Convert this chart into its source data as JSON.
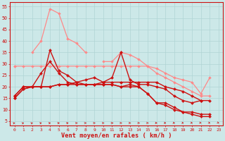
{
  "xlabel": "Vent moyen/en rafales ( km/h )",
  "background_color": "#cce8e8",
  "grid_color": "#b0d4d4",
  "x": [
    0,
    1,
    2,
    3,
    4,
    5,
    6,
    7,
    8,
    9,
    10,
    11,
    12,
    13,
    14,
    15,
    16,
    17,
    18,
    19,
    20,
    21,
    22,
    23
  ],
  "ylim": [
    3,
    57
  ],
  "yticks": [
    5,
    10,
    15,
    20,
    25,
    30,
    35,
    40,
    45,
    50,
    55
  ],
  "series": [
    {
      "color": "#ff8888",
      "lw": 0.9,
      "ms": 2.0,
      "y": [
        29,
        null,
        35,
        40,
        54,
        52,
        41,
        39,
        35,
        null,
        31,
        31,
        35,
        34,
        32,
        29,
        28,
        26,
        24,
        23,
        22,
        17,
        24,
        null
      ]
    },
    {
      "color": "#ff8888",
      "lw": 0.9,
      "ms": 2.0,
      "y": [
        29,
        29,
        29,
        29,
        29,
        29,
        29,
        29,
        29,
        29,
        29,
        29,
        29,
        29,
        29,
        29,
        26,
        24,
        22,
        20,
        18,
        16,
        16,
        null
      ]
    },
    {
      "color": "#cc1111",
      "lw": 1.0,
      "ms": 2.2,
      "y": [
        15,
        19,
        20,
        20,
        36,
        27,
        25,
        22,
        21,
        21,
        21,
        21,
        20,
        20,
        20,
        17,
        13,
        13,
        11,
        9,
        9,
        8,
        8,
        null
      ]
    },
    {
      "color": "#cc1111",
      "lw": 1.0,
      "ms": 2.2,
      "y": [
        15,
        19,
        20,
        26,
        31,
        26,
        22,
        21,
        21,
        21,
        21,
        21,
        20,
        21,
        20,
        17,
        13,
        12,
        10,
        9,
        8,
        7,
        7,
        null
      ]
    },
    {
      "color": "#cc1111",
      "lw": 1.0,
      "ms": 2.2,
      "y": [
        16,
        20,
        20,
        20,
        20,
        21,
        21,
        21,
        21,
        21,
        22,
        22,
        22,
        22,
        22,
        22,
        22,
        20,
        19,
        18,
        16,
        14,
        14,
        null
      ]
    },
    {
      "color": "#cc1111",
      "lw": 1.0,
      "ms": 2.2,
      "y": [
        16,
        20,
        20,
        20,
        20,
        21,
        21,
        22,
        23,
        24,
        22,
        24,
        35,
        23,
        21,
        21,
        20,
        19,
        16,
        14,
        13,
        14,
        null,
        null
      ]
    }
  ],
  "arrow_angles": [
    45,
    45,
    45,
    40,
    35,
    30,
    25,
    20,
    15,
    10,
    5,
    0,
    -5,
    -10,
    -15,
    -20,
    -25,
    -30,
    -35,
    -40,
    -45,
    -50,
    -50,
    -55
  ]
}
